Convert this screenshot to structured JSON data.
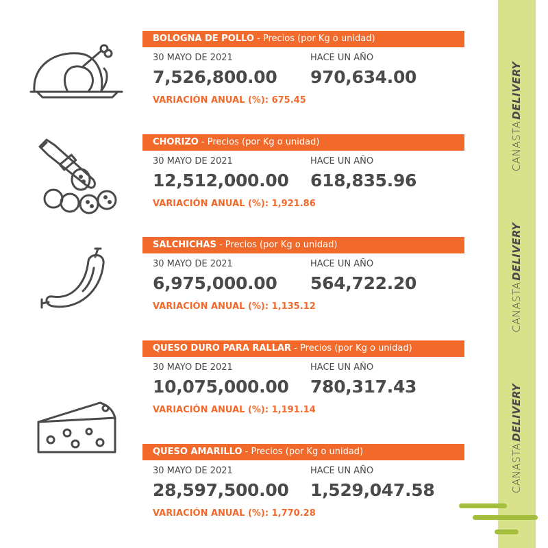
{
  "brand": {
    "prefix": "CANASTA",
    "name": "DELIVERY"
  },
  "suffix": " - Precios (por Kg o unidad)",
  "date_label": "30 MAYO DE 2021",
  "year_label": "HACE UN AÑO",
  "variation_label": "VARIACIÓN ANUAL (%):",
  "products": [
    {
      "name": "BOLOGNA DE POLLO",
      "current": "7,526,800.00",
      "previous": "970,634.00",
      "variation": "675.45",
      "icon": "roast-chicken-icon"
    },
    {
      "name": "CHORIZO",
      "current": "12,512,000.00",
      "previous": "618,835.96",
      "variation": "1,921.86",
      "icon": "chorizo-icon"
    },
    {
      "name": "SALCHICHAS",
      "current": "6,975,000.00",
      "previous": "564,722.20",
      "variation": "1,135.12",
      "icon": "sausage-icon"
    },
    {
      "name": "QUESO DURO PARA RALLAR",
      "current": "10,075,000.00",
      "previous": "780,317.43",
      "variation": "1,191.14",
      "icon": "cheese-icon"
    },
    {
      "name": "QUESO AMARILLO",
      "current": "28,597,500.00",
      "previous": "1,529,047.58",
      "variation": "1,770.28",
      "icon": "none"
    }
  ],
  "colors": {
    "accent": "#f26a2b",
    "sidebar": "#d8e28a",
    "decor": "#a4bf3e",
    "text": "#4a4a4a"
  }
}
